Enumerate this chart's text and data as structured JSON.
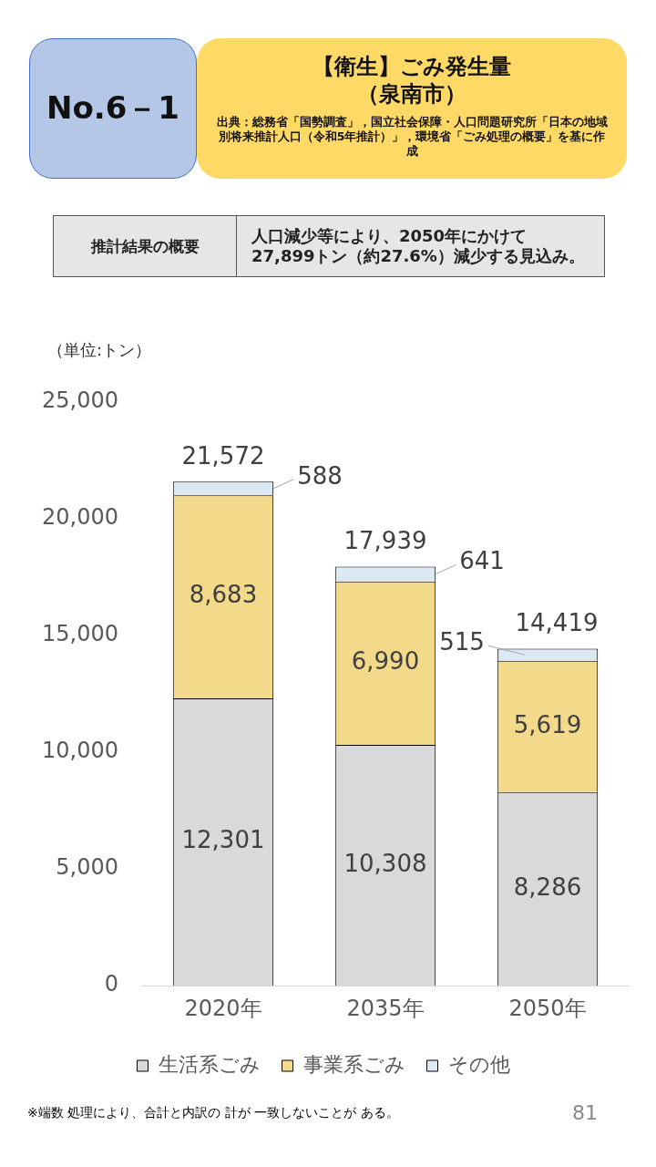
{
  "chart_data": {
    "type": "bar",
    "title": "【衛生】ごみ発生量（泉南市）",
    "ylabel": "（単位:トン）",
    "categories": [
      "2020年",
      "2035年",
      "2050年"
    ],
    "stacked": true,
    "series": [
      {
        "name": "生活系ごみ",
        "color": "#d9d9d9",
        "values": [
          12301,
          10308,
          8286
        ],
        "value_labels": [
          "12,301",
          "10,308",
          "8,286"
        ]
      },
      {
        "name": "事業系ごみ",
        "color": "#f3d98a",
        "values": [
          8683,
          6990,
          5619
        ],
        "value_labels": [
          "8,683",
          "6,990",
          "5,619"
        ]
      },
      {
        "name": "その他",
        "color": "#dde8f5",
        "values": [
          588,
          641,
          515
        ],
        "value_labels": [
          "588",
          "641",
          "515"
        ]
      }
    ],
    "ylim": [
      0,
      25000
    ],
    "yticks": [
      {
        "value": 0,
        "label": "0"
      },
      {
        "value": 5000,
        "label": "5,000"
      },
      {
        "value": 10000,
        "label": "10,000"
      },
      {
        "value": 15000,
        "label": "15,000"
      },
      {
        "value": 20000,
        "label": "20,000"
      },
      {
        "value": 25000,
        "label": "25,000"
      }
    ],
    "grid": false,
    "legend": "bottom",
    "totals": [
      "21,572",
      "17,939",
      "14,419"
    ],
    "annotations": [
      "No.6－1",
      "出典：総務省「国勢調査」，国立社会保障・人口問題研究所「日本の地域別将来推計人口（令和5年推計）」，環境省「ごみ処理の概要」を基に作成",
      "推計結果の概要",
      "人口減少等により、2050年にかけて\n27,899トン（約27.6%）減少する見込み。",
      "※端数 処理により、合計と内訳の 計が 一致しないことが ある。",
      "81"
    ]
  }
}
